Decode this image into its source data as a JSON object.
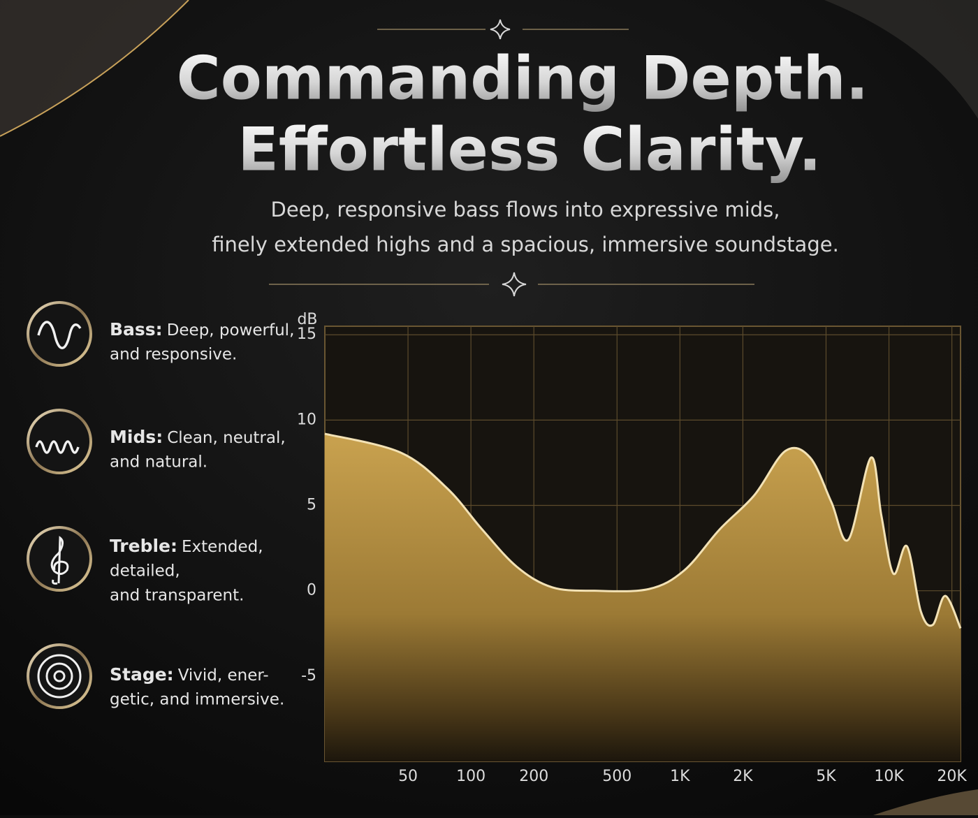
{
  "header": {
    "title_lines": [
      "Commanding Depth.",
      "Effortless Clarity."
    ],
    "subtitle_lines": [
      "Deep, responsive bass flows into expressive mids,",
      "finely extended highs and a spacious, immersive soundstage."
    ]
  },
  "features": [
    {
      "label": "Bass:",
      "text_lines": [
        "Deep, powerful,",
        "and responsive."
      ]
    },
    {
      "label": "Mids:",
      "text_lines": [
        "Clean, neutral,",
        "and natural."
      ]
    },
    {
      "label": "Treble:",
      "text_lines": [
        "Extended,",
        "detailed,",
        "and transparent."
      ]
    },
    {
      "label": "Stage:",
      "text_lines": [
        "Vivid, ener-",
        "getic, and immersive."
      ]
    }
  ],
  "chart_data": {
    "type": "area",
    "ylabel": "dB",
    "x_log": true,
    "grid": true,
    "color": "#c9a24f",
    "line_color": "#f3e2b5",
    "x": [
      20,
      46,
      77,
      113,
      166,
      245,
      390,
      710,
      1050,
      1550,
      2270,
      3200,
      4200,
      5300,
      6400,
      8200,
      9200,
      10500,
      12200,
      14200,
      16200,
      18600,
      22000
    ],
    "values": [
      9.2,
      8.1,
      6.0,
      3.6,
      1.4,
      0.2,
      0,
      0.1,
      1.2,
      3.6,
      5.6,
      8.2,
      7.8,
      5.2,
      3.0,
      7.8,
      4.4,
      1.0,
      2.6,
      -1.2,
      -2.0,
      -0.3,
      -2.2
    ],
    "xlim": [
      20,
      22000
    ],
    "ylim": [
      -10,
      15.5
    ],
    "xticks": [
      50,
      100,
      200,
      500,
      {
        "value": 1000,
        "label": "1K"
      },
      {
        "value": 2000,
        "label": "2K"
      },
      {
        "value": 5000,
        "label": "5K"
      },
      {
        "value": 10000,
        "label": "10K"
      },
      {
        "value": 20000,
        "label": "20K"
      }
    ],
    "yticks": [
      -5,
      0,
      5,
      10,
      15
    ]
  }
}
